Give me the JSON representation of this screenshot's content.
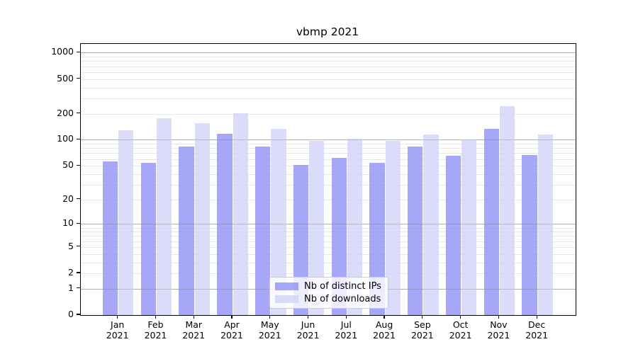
{
  "chart_data": {
    "type": "bar",
    "title": "vbmp 2021",
    "categories": [
      "Jan",
      "Feb",
      "Mar",
      "Apr",
      "May",
      "Jun",
      "Jul",
      "Aug",
      "Sep",
      "Oct",
      "Nov",
      "Dec"
    ],
    "category_year": "2021",
    "series": [
      {
        "name": "Nb of distinct IPs",
        "color": "#9696f5",
        "values": [
          56,
          54,
          84,
          117,
          83,
          51,
          62,
          54,
          84,
          66,
          134,
          67
        ]
      },
      {
        "name": "Nb of downloads",
        "color": "#d4d4f9",
        "values": [
          129,
          179,
          155,
          202,
          134,
          97,
          103,
          98,
          116,
          101,
          244,
          115
        ]
      }
    ],
    "y_ticks": [
      0,
      1,
      2,
      5,
      10,
      20,
      50,
      100,
      200,
      500,
      1000
    ],
    "y_scale": "log1p",
    "ylim": [
      0,
      1262
    ],
    "xlabel": "",
    "ylabel": "",
    "grid": {
      "on": true,
      "major_values": [
        1,
        10,
        100,
        1000
      ],
      "minor_values": [
        2,
        3,
        4,
        5,
        6,
        7,
        8,
        9,
        20,
        30,
        40,
        50,
        60,
        70,
        80,
        90,
        200,
        300,
        400,
        500,
        600,
        700,
        800,
        900
      ],
      "major_color": "#bfbfbf",
      "minor_color": "#e7e7e7"
    },
    "legend_position": "lower center"
  }
}
